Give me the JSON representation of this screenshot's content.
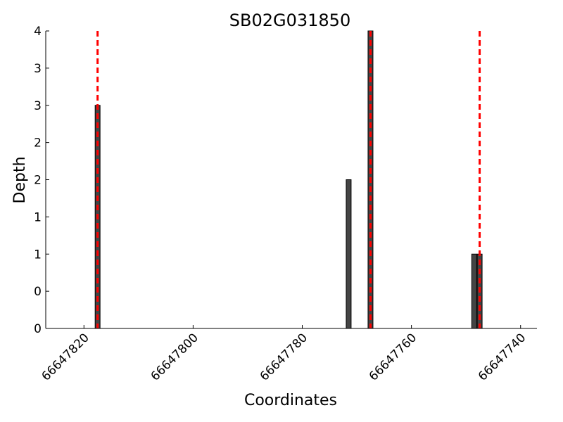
{
  "chart_data": {
    "type": "bar",
    "title": "SB02G031850",
    "xlabel": "Coordinates",
    "ylabel": "Depth",
    "x": [
      66647817.5,
      66647771.5,
      66647767.5,
      66647748.5,
      66647747.5
    ],
    "values": [
      3,
      2,
      4,
      1,
      1
    ],
    "color": "#444444",
    "xlim": [
      66647827,
      66647737
    ],
    "xticks": [
      66647820,
      66647800,
      66647780,
      66647760,
      66647740
    ],
    "ylim": [
      0,
      4
    ],
    "yticks": [
      {
        "value": 0,
        "label": "0"
      },
      {
        "value": 0.5,
        "label": "0"
      },
      {
        "value": 1,
        "label": "1"
      },
      {
        "value": 1.5,
        "label": "1"
      },
      {
        "value": 2,
        "label": "2"
      },
      {
        "value": 2.5,
        "label": "2"
      },
      {
        "value": 3,
        "label": "3"
      },
      {
        "value": 3.5,
        "label": "3"
      },
      {
        "value": 4,
        "label": "4"
      }
    ],
    "vlines": [
      66647817.5,
      66647767.5,
      66647747.5
    ],
    "vline_color": "#ff0000"
  }
}
